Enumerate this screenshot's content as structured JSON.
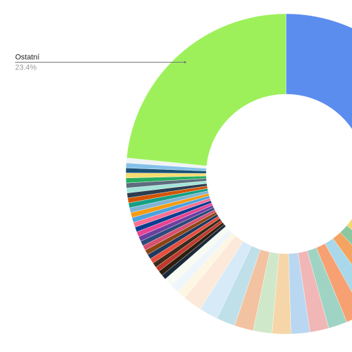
{
  "chart_data": {
    "type": "donut",
    "categories": [
      null,
      null,
      null,
      null,
      null,
      null,
      null,
      null,
      null,
      null,
      null,
      null,
      null,
      null,
      null,
      null,
      null,
      null,
      null,
      null,
      null,
      null,
      null,
      null,
      null,
      null,
      null,
      null,
      null,
      null,
      null,
      null,
      null,
      null,
      null,
      null,
      null,
      null,
      null,
      null,
      null,
      null,
      null,
      null,
      null,
      null,
      "Ostatní"
    ],
    "values": [
      30.5,
      1.9,
      1.9,
      1.9,
      1.9,
      1.9,
      1.9,
      1.9,
      1.9,
      1.9,
      1.9,
      1.9,
      1.9,
      1.9,
      1.9,
      1.9,
      1.9,
      0.9,
      0.9,
      0.9,
      0.5,
      0.5,
      0.5,
      0.5,
      0.5,
      0.5,
      0.5,
      0.5,
      0.5,
      0.5,
      0.5,
      0.5,
      0.5,
      0.5,
      0.5,
      0.5,
      0.5,
      0.5,
      0.5,
      0.5,
      0.5,
      0.5,
      0.5,
      0.5,
      0.5,
      0.5,
      23.4
    ],
    "value_labels": [
      null,
      null,
      null,
      null,
      null,
      null,
      null,
      null,
      null,
      null,
      null,
      null,
      null,
      null,
      null,
      null,
      null,
      null,
      null,
      null,
      null,
      null,
      null,
      null,
      null,
      null,
      null,
      null,
      null,
      null,
      null,
      null,
      null,
      null,
      null,
      null,
      null,
      null,
      null,
      null,
      null,
      null,
      null,
      null,
      null,
      null,
      "23.4%"
    ],
    "colors": [
      "#5b8def",
      "#e88b8b",
      "#f2c86b",
      "#f5d76e",
      "#8cc7a0",
      "#f4a460",
      "#a8d8ea",
      "#f7a072",
      "#9fd4c4",
      "#f1b6b6",
      "#b9d7f0",
      "#f6d6a8",
      "#cfe8c9",
      "#f3c2a0",
      "#bfe0e8",
      "#d6eaf8",
      "#fde9d9",
      "#fdf6e3",
      "#eef6fb",
      "#f7fbf2",
      "#1b2a3a",
      "#2d1e0f",
      "#c0392b",
      "#3b2a1a",
      "#e74c3c",
      "#1f3a5f",
      "#8b4513",
      "#d94f70",
      "#2e4a7d",
      "#6b3fa0",
      "#e84393",
      "#0b3d91",
      "#ff6f91",
      "#4aa3df",
      "#f39c12",
      "#7fb3d5",
      "#16a085",
      "#d35400",
      "#2c3e50",
      "#a3e4d7",
      "#5d6d7e",
      "#27ae60",
      "#f7dc6f",
      "#1a5276",
      "#85c1e9",
      "#f0f3f4",
      "#9df05a"
    ]
  }
}
